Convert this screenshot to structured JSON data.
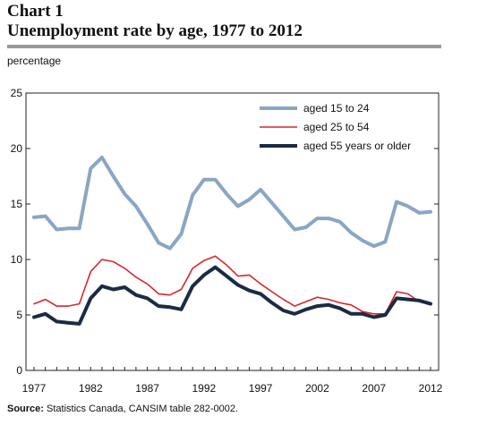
{
  "header": {
    "chart_number": "Chart 1",
    "title": "Unemployment rate by age, 1977 to 2012"
  },
  "source": {
    "label": "Source:",
    "text": "Statistics Canada, CANSIM table 282-0002."
  },
  "chart_data": {
    "type": "line",
    "title": "Unemployment rate by age, 1977 to 2012",
    "ylabel": "percentage",
    "xlabel": "",
    "ylim": [
      0,
      25
    ],
    "xlim": [
      1977,
      2012
    ],
    "yticks": [
      0,
      5,
      10,
      15,
      20,
      25
    ],
    "xticks": [
      1977,
      1982,
      1987,
      1992,
      1997,
      2002,
      2007,
      2012
    ],
    "grid": false,
    "legend_position": "top-right",
    "x": [
      1977,
      1978,
      1979,
      1980,
      1981,
      1982,
      1983,
      1984,
      1985,
      1986,
      1987,
      1988,
      1989,
      1990,
      1991,
      1992,
      1993,
      1994,
      1995,
      1996,
      1997,
      1998,
      1999,
      2000,
      2001,
      2002,
      2003,
      2004,
      2005,
      2006,
      2007,
      2008,
      2009,
      2010,
      2011,
      2012
    ],
    "series": [
      {
        "name": "aged 15 to 24",
        "color": "#8aa6c4",
        "values": [
          13.8,
          13.9,
          12.7,
          12.8,
          12.8,
          18.2,
          19.2,
          17.5,
          15.9,
          14.8,
          13.2,
          11.5,
          11.0,
          12.3,
          15.8,
          17.2,
          17.2,
          15.9,
          14.8,
          15.4,
          16.3,
          15.1,
          13.9,
          12.7,
          12.9,
          13.7,
          13.7,
          13.4,
          12.4,
          11.7,
          11.2,
          11.6,
          15.2,
          14.8,
          14.2,
          14.3
        ]
      },
      {
        "name": "aged 25 to 54",
        "color": "#d9262b",
        "values": [
          6.0,
          6.4,
          5.8,
          5.8,
          6.0,
          8.9,
          10.0,
          9.8,
          9.2,
          8.4,
          7.8,
          6.9,
          6.8,
          7.3,
          9.2,
          9.9,
          10.3,
          9.5,
          8.5,
          8.6,
          7.8,
          7.1,
          6.4,
          5.8,
          6.2,
          6.6,
          6.4,
          6.1,
          5.9,
          5.3,
          5.1,
          5.1,
          7.1,
          6.9,
          6.2,
          6.0
        ]
      },
      {
        "name": "aged 55 years or older",
        "color": "#1c2b44",
        "values": [
          4.8,
          5.1,
          4.4,
          4.3,
          4.2,
          6.5,
          7.6,
          7.3,
          7.5,
          6.8,
          6.5,
          5.8,
          5.7,
          5.5,
          7.6,
          8.6,
          9.3,
          8.5,
          7.7,
          7.2,
          6.9,
          6.1,
          5.4,
          5.1,
          5.5,
          5.8,
          5.9,
          5.6,
          5.1,
          5.1,
          4.8,
          5.0,
          6.5,
          6.4,
          6.3,
          6.0
        ]
      }
    ]
  }
}
